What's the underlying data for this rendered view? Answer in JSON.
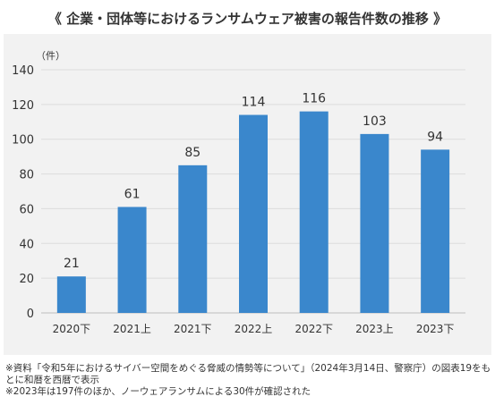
{
  "title": "《 企業・団体等におけるランサムウェア被害の報告件数の推移 》",
  "chart_data": {
    "type": "bar",
    "ylabel": "（件）",
    "ylim": [
      0,
      140
    ],
    "yticks": [
      0,
      20,
      40,
      60,
      80,
      100,
      120,
      140
    ],
    "grid": true,
    "categories": [
      "2020下",
      "2021上",
      "2021下",
      "2022上",
      "2022下",
      "2023上",
      "2023下"
    ],
    "values": [
      21,
      61,
      85,
      114,
      116,
      103,
      94
    ],
    "bar_color": "#3a87cc"
  },
  "notes": [
    "※資料「令和5年におけるサイバー空間をめぐる脅威の情勢等について」（2024年3月14日、警察庁）の図表19をもとに和暦を西暦で表示",
    "※2023年は197件のほか、ノーウェアランサムによる30件が確認された"
  ]
}
